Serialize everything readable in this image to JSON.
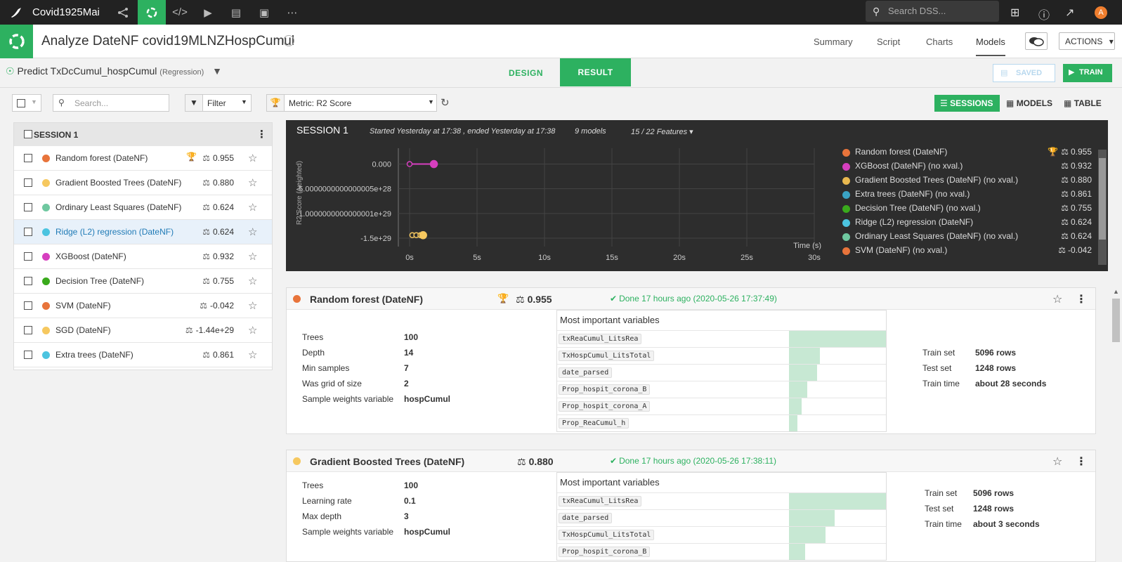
{
  "topbar": {
    "project": "Covid1925Mai",
    "search_placeholder": "Search DSS...",
    "avatar_letter": "A",
    "nav_icons": [
      "flow-icon",
      "lab-icon",
      "code-icon",
      "run-icon",
      "deploy-icon",
      "dashboard-icon",
      "more-icon"
    ]
  },
  "header": {
    "title": "Analyze DateNF covid19MLNZHospCumul",
    "tabs": [
      "Summary",
      "Script",
      "Charts",
      "Models"
    ],
    "active_tab": "Models",
    "actions_label": "ACTIONS"
  },
  "subbar": {
    "predict": "Predict TxDcCumul_hospCumul",
    "predict_type": "(Regression)",
    "design": "DESIGN",
    "result": "RESULT",
    "saved": "SAVED",
    "train": "TRAIN"
  },
  "toolbar": {
    "search_placeholder": "Search...",
    "filter": "Filter",
    "metric": "Metric: R2 Score",
    "views": [
      "SESSIONS",
      "MODELS",
      "TABLE"
    ]
  },
  "left_panel": {
    "session_label": "SESSION 1",
    "models": [
      {
        "name": "Random forest (DateNF)",
        "score": "0.955",
        "color": "#e8743b",
        "trophy": true
      },
      {
        "name": "Gradient Boosted Trees (DateNF)",
        "score": "0.880",
        "color": "#f6c85f"
      },
      {
        "name": "Ordinary Least Squares (DateNF)",
        "score": "0.624",
        "color": "#6fc8a0"
      },
      {
        "name": "Ridge (L2) regression (DateNF)",
        "score": "0.624",
        "color": "#4cc4e0",
        "selected": true
      },
      {
        "name": "XGBoost (DateNF)",
        "score": "0.932",
        "color": "#d63fbf"
      },
      {
        "name": "Decision Tree (DateNF)",
        "score": "0.755",
        "color": "#3aaa1c"
      },
      {
        "name": "SVM (DateNF)",
        "score": "-0.042",
        "color": "#e8743b"
      },
      {
        "name": "SGD (DateNF)",
        "score": "-1.44e+29",
        "color": "#f6c85f"
      },
      {
        "name": "Extra trees (DateNF)",
        "score": "0.861",
        "color": "#4cc4e0"
      }
    ]
  },
  "session_panel": {
    "title": "SESSION 1",
    "started": "Started Yesterday at 17:38 , ended Yesterday at 17:38",
    "models_count": "9 models",
    "features": "15 / 22 Features",
    "legend": [
      {
        "name": "Random forest (DateNF)",
        "score": "0.955",
        "color": "#e8743b",
        "trophy": true
      },
      {
        "name": "XGBoost (DateNF) (no xval.)",
        "score": "0.932",
        "color": "#d63fbf"
      },
      {
        "name": "Gradient Boosted Trees (DateNF) (no xval.)",
        "score": "0.880",
        "color": "#e8b84f"
      },
      {
        "name": "Extra trees (DateNF) (no xval.)",
        "score": "0.861",
        "color": "#3aa3c4"
      },
      {
        "name": "Decision Tree (DateNF) (no xval.)",
        "score": "0.755",
        "color": "#3aaa1c"
      },
      {
        "name": "Ridge (L2) regression (DateNF)",
        "score": "0.624",
        "color": "#4cc4e0"
      },
      {
        "name": "Ordinary Least Squares (DateNF) (no xval.)",
        "score": "0.624",
        "color": "#6fc8a0"
      },
      {
        "name": "SVM (DateNF) (no xval.)",
        "score": "-0.042",
        "color": "#e8743b"
      }
    ]
  },
  "chart_data": {
    "type": "line",
    "title": "",
    "xlabel": "Time (s)",
    "ylabel": "R2 Score (weighted)",
    "x_ticks": [
      "0s",
      "5s",
      "10s",
      "15s",
      "20s",
      "25s",
      "30s"
    ],
    "y_ticks": [
      "0.000",
      "-5.0000000000000005e+28",
      "-1.0000000000000001e+29",
      "-1.5e+29"
    ],
    "xlim": [
      0,
      30
    ],
    "ylim": [
      -1.6e+29,
      1.5e+28
    ],
    "series": [
      {
        "name": "XGBoost (DateNF) (no xval.)",
        "color": "#d63fbf",
        "x": [
          0,
          1.8
        ],
        "y": [
          0,
          0
        ]
      },
      {
        "name": "SGD (DateNF)",
        "color": "#f6c85f",
        "x": [
          0.2,
          0.5,
          0.8,
          1.0
        ],
        "y": [
          -1.44e+29,
          -1.44e+29,
          -1.44e+29,
          -1.44e+29
        ]
      }
    ]
  },
  "cards": [
    {
      "name": "Random forest (DateNF)",
      "color": "#e8743b",
      "trophy": true,
      "score": "0.955",
      "done": "Done 17 hours ago (2020-05-26 17:37:49)",
      "params": [
        {
          "k": "Trees",
          "v": "100"
        },
        {
          "k": "Depth",
          "v": "14"
        },
        {
          "k": "Min samples",
          "v": "7"
        },
        {
          "k": "Was grid of size",
          "v": "2"
        },
        {
          "k": "Sample weights variable",
          "v": "hospCumul"
        }
      ],
      "vi_title": "Most important variables",
      "variables": [
        {
          "n": "txReaCumul_LitsRea",
          "w": 1.0
        },
        {
          "n": "TxHospCumul_LitsTotal",
          "w": 0.32
        },
        {
          "n": "date_parsed",
          "w": 0.29
        },
        {
          "n": "Prop_hospit_corona_B",
          "w": 0.19
        },
        {
          "n": "Prop_hospit_corona_A",
          "w": 0.13
        },
        {
          "n": "Prop_ReaCumul_h",
          "w": 0.09
        }
      ],
      "stats": [
        {
          "k": "Train set",
          "v": "5096 rows"
        },
        {
          "k": "Test set",
          "v": "1248 rows"
        },
        {
          "k": "Train time",
          "v": "about 28 seconds"
        }
      ]
    },
    {
      "name": "Gradient Boosted Trees (DateNF)",
      "color": "#f6c85f",
      "trophy": false,
      "score": "0.880",
      "done": "Done 17 hours ago (2020-05-26 17:38:11)",
      "params": [
        {
          "k": "Trees",
          "v": "100"
        },
        {
          "k": "Learning rate",
          "v": "0.1"
        },
        {
          "k": "Max depth",
          "v": "3"
        },
        {
          "k": "Sample weights variable",
          "v": "hospCumul"
        }
      ],
      "vi_title": "Most important variables",
      "variables": [
        {
          "n": "txReaCumul_LitsRea",
          "w": 1.0
        },
        {
          "n": "date_parsed",
          "w": 0.47
        },
        {
          "n": "TxHospCumul_LitsTotal",
          "w": 0.38
        },
        {
          "n": "Prop_hospit_corona_B",
          "w": 0.17
        }
      ],
      "stats": [
        {
          "k": "Train set",
          "v": "5096 rows"
        },
        {
          "k": "Test set",
          "v": "1248 rows"
        },
        {
          "k": "Train time",
          "v": "about 3 seconds"
        }
      ]
    }
  ]
}
